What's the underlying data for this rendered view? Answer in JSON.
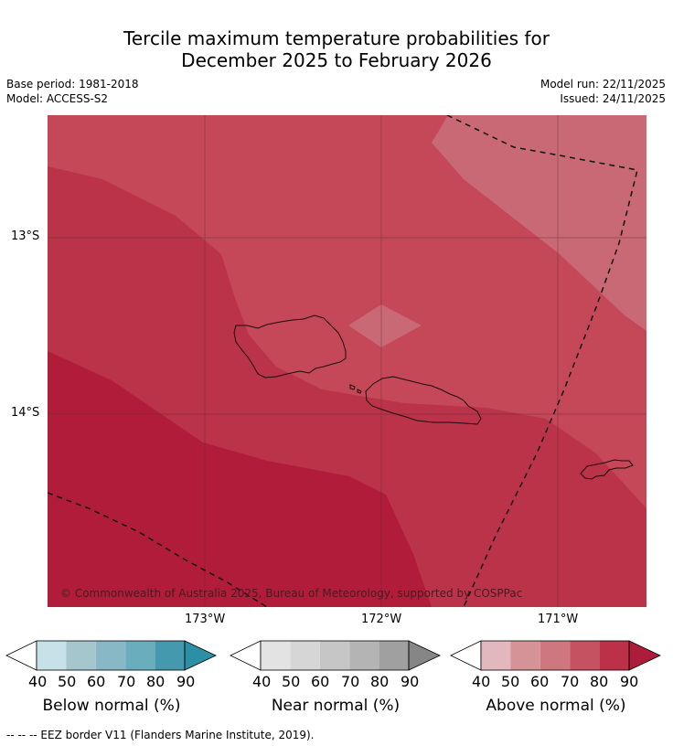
{
  "title": {
    "line1": "Tercile maximum temperature probabilities for",
    "line2": "December 2025 to February 2026"
  },
  "meta": {
    "base_period": "Base period: 1981-2018",
    "model": "Model: ACCESS-S2",
    "model_run": "Model run: 22/11/2025",
    "issued": "Issued: 24/11/2025"
  },
  "map": {
    "lat_labels": [
      "13°S",
      "14°S"
    ],
    "lon_labels": [
      "173°W",
      "172°W",
      "171°W"
    ],
    "copyright": "© Commonwealth of Australia 2025, Bureau of Meteorology, supported by COSPPac",
    "features": [
      "Savai'i",
      "Upolu",
      "Tutuila",
      "EEZ border"
    ]
  },
  "legend": {
    "below": {
      "label": "Below normal (%)",
      "ticks": [
        "40",
        "50",
        "60",
        "70",
        "80",
        "90"
      ],
      "colors": [
        "#ffffff",
        "#c7e1e8",
        "#a5c6cd",
        "#88b8c5",
        "#6aaebe",
        "#4599ae",
        "#2b8fa5"
      ]
    },
    "near": {
      "label": "Near normal (%)",
      "ticks": [
        "40",
        "50",
        "60",
        "70",
        "80",
        "90"
      ],
      "colors": [
        "#ffffff",
        "#e3e3e3",
        "#d6d6d6",
        "#c6c6c6",
        "#b4b4b4",
        "#a0a0a0",
        "#868686"
      ]
    },
    "above": {
      "label": "Above normal (%)",
      "ticks": [
        "40",
        "50",
        "60",
        "70",
        "80",
        "90"
      ],
      "colors": [
        "#ffffff",
        "#e2b7bd",
        "#d59398",
        "#cf777e",
        "#c45260",
        "#bc3048",
        "#ad1c3b"
      ]
    }
  },
  "footnote": "--  --  -- EEZ border V11 (Flanders Marine Institute, 2019)."
}
